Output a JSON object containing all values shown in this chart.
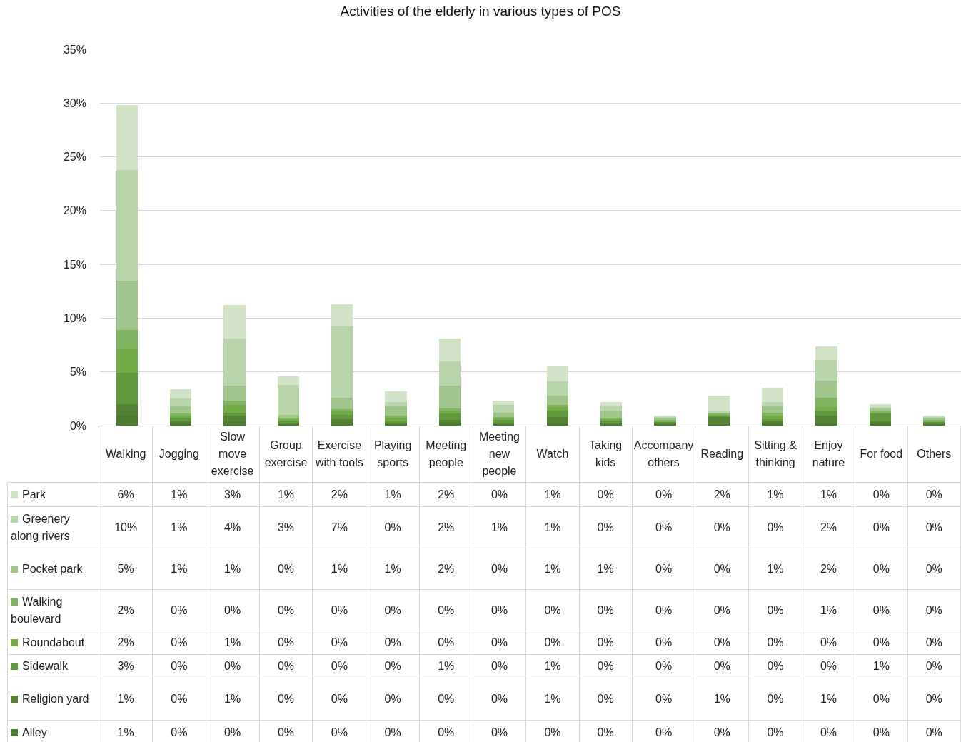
{
  "chart_data": {
    "type": "bar",
    "title": "Activities of the elderly in various types of POS",
    "categories": [
      "Walking",
      "Jogging",
      "Slow move exercise",
      "Group exercise",
      "Exercise with tools",
      "Playing sports",
      "Meeting people",
      "Meeting new people",
      "Watch",
      "Taking kids",
      "Accompany others",
      "Reading",
      "Sitting & thinking",
      "Enjoy nature",
      "For food",
      "Others"
    ],
    "stacked": true,
    "ylim": [
      0,
      35
    ],
    "yticks": [
      {
        "value": 0,
        "label": "0%"
      },
      {
        "value": 5,
        "label": "5%"
      },
      {
        "value": 10,
        "label": "10%"
      },
      {
        "value": 15,
        "label": "15%"
      },
      {
        "value": 20,
        "label": "20%"
      },
      {
        "value": 25,
        "label": "25%"
      },
      {
        "value": 30,
        "label": "30%"
      },
      {
        "value": 35,
        "label": "35%"
      }
    ],
    "grid": "y",
    "legend": "bottom left",
    "series": [
      {
        "name": "Alley",
        "color": "#4b7a30",
        "values": [
          0.9,
          0.2,
          0.3,
          0.1,
          0.3,
          0.1,
          0.2,
          0.1,
          0.2,
          0.1,
          0.1,
          0.1,
          0.2,
          0.2,
          0.2,
          0.1
        ],
        "value_labels": [
          "1%",
          "0%",
          "0%",
          "0%",
          "0%",
          "0%",
          "0%",
          "0%",
          "0%",
          "0%",
          "0%",
          "0%",
          "0%",
          "0%",
          "0%",
          "0%"
        ]
      },
      {
        "name": "Religion yard",
        "color": "#548235",
        "values": [
          1.1,
          0.2,
          0.6,
          0.1,
          0.3,
          0.1,
          0.3,
          0.1,
          0.6,
          0.1,
          0.1,
          0.7,
          0.2,
          0.7,
          0.2,
          0.1
        ],
        "value_labels": [
          "1%",
          "0%",
          "1%",
          "0%",
          "0%",
          "0%",
          "0%",
          "0%",
          "1%",
          "0%",
          "0%",
          "1%",
          "0%",
          "1%",
          "0%",
          "0%"
        ]
      },
      {
        "name": "Sidewalk",
        "color": "#5e9a3b",
        "values": [
          2.9,
          0.3,
          0.3,
          0.2,
          0.4,
          0.2,
          0.6,
          0.3,
          0.6,
          0.2,
          0.1,
          0.1,
          0.2,
          0.4,
          0.7,
          0.1
        ],
        "value_labels": [
          "3%",
          "0%",
          "0%",
          "0%",
          "0%",
          "0%",
          "1%",
          "0%",
          "1%",
          "0%",
          "0%",
          "0%",
          "0%",
          "0%",
          "1%",
          "0%"
        ]
      },
      {
        "name": "Roundabout",
        "color": "#70ad47",
        "values": [
          2.3,
          0.2,
          0.7,
          0.2,
          0.3,
          0.3,
          0.3,
          0.2,
          0.3,
          0.2,
          0.1,
          0.1,
          0.3,
          0.4,
          0.1,
          0.1
        ],
        "value_labels": [
          "2%",
          "0%",
          "1%",
          "0%",
          "0%",
          "0%",
          "0%",
          "0%",
          "0%",
          "0%",
          "0%",
          "0%",
          "0%",
          "0%",
          "0%",
          "0%"
        ]
      },
      {
        "name": "Walking boulevard",
        "color": "#7fb560",
        "values": [
          1.7,
          0.2,
          0.4,
          0.1,
          0.2,
          0.2,
          0.2,
          0.1,
          0.2,
          0.1,
          0.1,
          0.1,
          0.3,
          0.9,
          0.1,
          0.1
        ],
        "value_labels": [
          "2%",
          "0%",
          "0%",
          "0%",
          "0%",
          "0%",
          "0%",
          "0%",
          "0%",
          "0%",
          "0%",
          "0%",
          "0%",
          "1%",
          "0%",
          "0%"
        ]
      },
      {
        "name": "Pocket park",
        "color": "#9fc58a",
        "values": [
          4.6,
          0.7,
          1.4,
          0.3,
          1.1,
          0.9,
          2.1,
          0.4,
          0.9,
          0.7,
          0.2,
          0.1,
          0.6,
          1.6,
          0.3,
          0.2
        ],
        "value_labels": [
          "5%",
          "1%",
          "1%",
          "0%",
          "1%",
          "1%",
          "2%",
          "0%",
          "1%",
          "1%",
          "0%",
          "0%",
          "1%",
          "2%",
          "0%",
          "0%"
        ]
      },
      {
        "name": "Greenery along rivers",
        "color": "#b7d5a8",
        "values": [
          10.3,
          0.7,
          4.4,
          2.8,
          6.6,
          0.4,
          2.3,
          0.7,
          1.3,
          0.4,
          0.1,
          0.1,
          0.4,
          1.9,
          0.1,
          0.1
        ],
        "value_labels": [
          "10%",
          "1%",
          "4%",
          "3%",
          "7%",
          "0%",
          "2%",
          "1%",
          "1%",
          "0%",
          "0%",
          "0%",
          "0%",
          "2%",
          "0%",
          "0%"
        ]
      },
      {
        "name": "Park",
        "color": "#d3e3c8",
        "values": [
          6.0,
          0.9,
          3.1,
          0.8,
          2.1,
          1.0,
          2.1,
          0.4,
          1.5,
          0.4,
          0.1,
          1.5,
          1.3,
          1.3,
          0.3,
          0.1
        ],
        "value_labels": [
          "6%",
          "1%",
          "3%",
          "1%",
          "2%",
          "1%",
          "2%",
          "0%",
          "1%",
          "0%",
          "0%",
          "2%",
          "1%",
          "1%",
          "0%",
          "0%"
        ]
      }
    ]
  }
}
